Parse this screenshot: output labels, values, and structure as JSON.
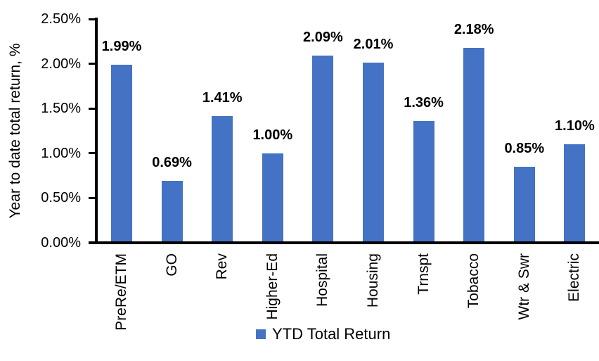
{
  "chart_data": {
    "type": "bar",
    "title": "",
    "xlabel": "",
    "ylabel": "Year to date total return, %",
    "categories": [
      "PreRe/ETM",
      "GO",
      "Rev",
      "Higher-Ed",
      "Hospital",
      "Housing",
      "Trnspt",
      "Tobacco",
      "Wtr & Swr",
      "Electric"
    ],
    "values": [
      1.99,
      0.69,
      1.41,
      1.0,
      2.09,
      2.01,
      1.36,
      2.18,
      0.85,
      1.1
    ],
    "data_labels": [
      "1.99%",
      "0.69%",
      "1.41%",
      "1.00%",
      "2.09%",
      "2.01%",
      "1.36%",
      "2.18%",
      "0.85%",
      "1.10%"
    ],
    "y_ticks": [
      {
        "value": 0.0,
        "label": "0.00%"
      },
      {
        "value": 0.5,
        "label": "0.50%"
      },
      {
        "value": 1.0,
        "label": "1.00%"
      },
      {
        "value": 1.5,
        "label": "1.50%"
      },
      {
        "value": 2.0,
        "label": "2.00%"
      },
      {
        "value": 2.5,
        "label": "2.50%"
      }
    ],
    "ylim": [
      0,
      2.5
    ],
    "grid": false,
    "bar_color": "#4472C4",
    "axis_color": "#000000",
    "legend": {
      "position": "bottom",
      "entries": [
        {
          "label": "YTD Total Return",
          "color": "#4472C4"
        }
      ]
    }
  }
}
